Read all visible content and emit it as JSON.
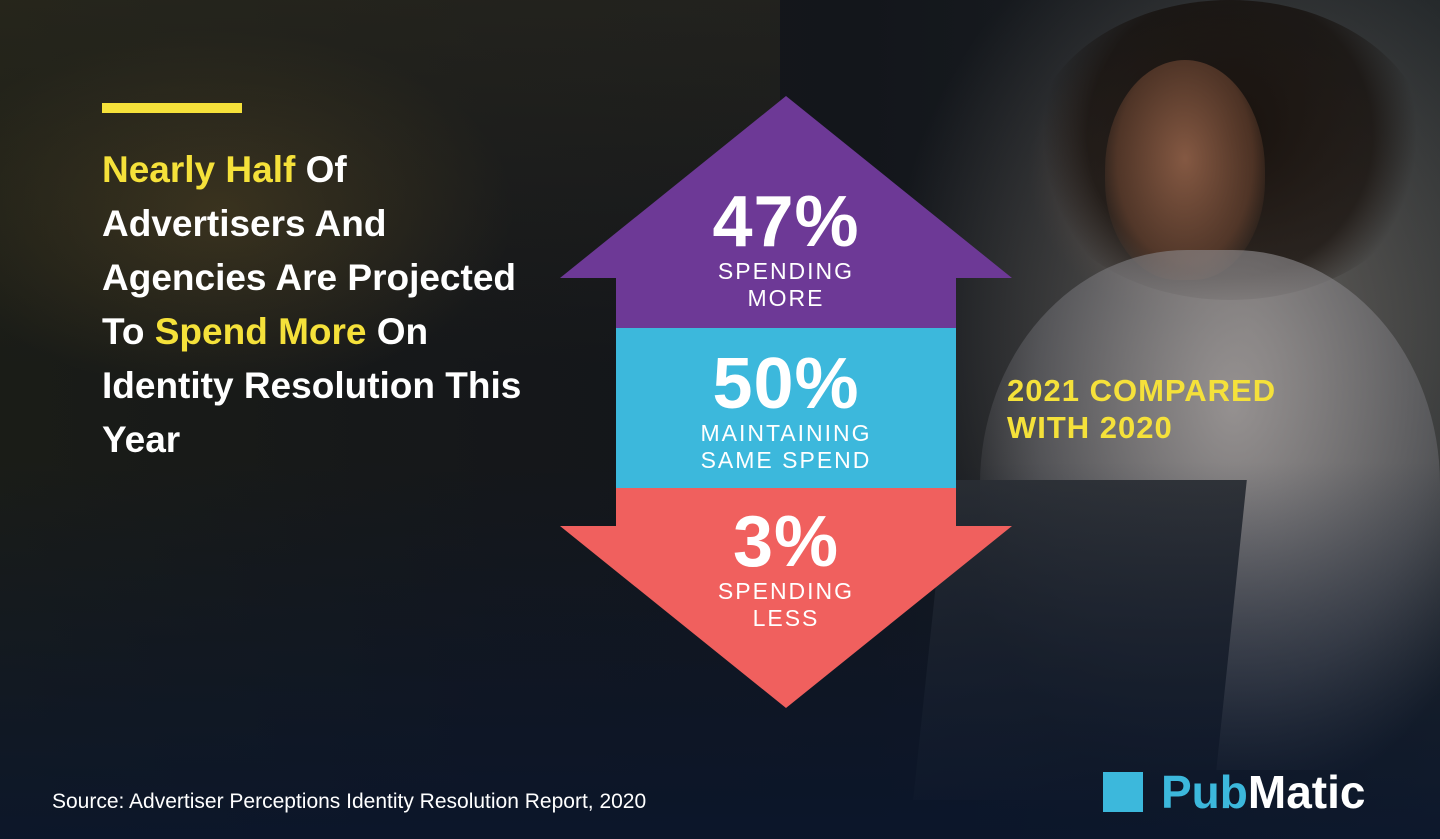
{
  "headline": {
    "highlight_1": "Nearly Half",
    "text_1": " Of Advertisers And Agencies Are Projected To ",
    "highlight_2": "Spend More",
    "text_2": " On Identity Resolution This Year"
  },
  "comparison_note": {
    "line_1": "2021 COMPARED",
    "line_2": "WITH 2020"
  },
  "stats": [
    {
      "value": "47%",
      "label_1": "SPENDING",
      "label_2": "MORE",
      "color": "#6d3996"
    },
    {
      "value": "50%",
      "label_1": "MAINTAINING",
      "label_2": "SAME SPEND",
      "color": "#3cb8dc"
    },
    {
      "value": "3%",
      "label_1": "SPENDING",
      "label_2": "LESS",
      "color": "#f0605e"
    }
  ],
  "source": "Source: Advertiser Perceptions Identity Resolution Report, 2020",
  "logo": {
    "part_1": "Pub",
    "part_2": "Matic",
    "icon": "square-icon",
    "brand_color": "#3cb8dc"
  },
  "accent_color": "#f5e13a"
}
